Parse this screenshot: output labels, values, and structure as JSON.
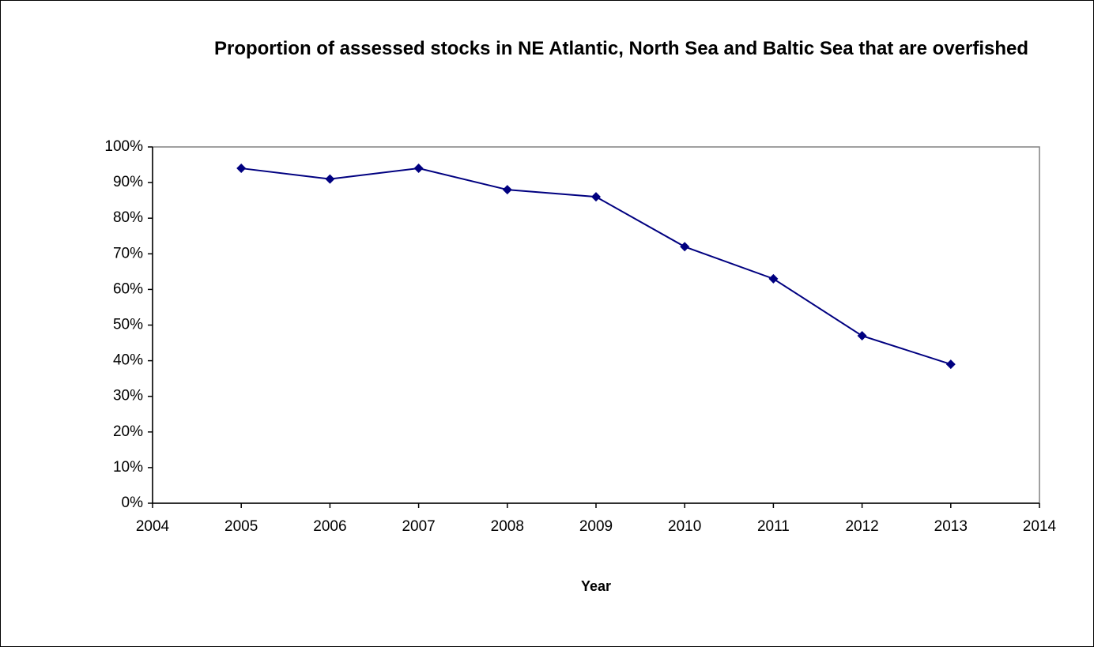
{
  "chart_data": {
    "type": "line",
    "title": "Proportion of assessed stocks in NE Atlantic, North Sea and Baltic Sea that are overfished",
    "x_label": "Year",
    "series": [
      {
        "color": "#000080",
        "x": [
          2005,
          2006,
          2007,
          2008,
          2009,
          2010,
          2011,
          2012,
          2013
        ],
        "values": [
          94,
          91,
          94,
          88,
          86,
          72,
          63,
          47,
          39
        ]
      }
    ],
    "xlim": [
      2004,
      2014
    ],
    "xticks": [
      2004,
      2005,
      2006,
      2007,
      2008,
      2009,
      2010,
      2011,
      2012,
      2013,
      2014
    ],
    "ylim": [
      0,
      100
    ],
    "yticks": [
      {
        "value": 0,
        "label": "0%"
      },
      {
        "value": 10,
        "label": "10%"
      },
      {
        "value": 20,
        "label": "20%"
      },
      {
        "value": 30,
        "label": "30%"
      },
      {
        "value": 40,
        "label": "40%"
      },
      {
        "value": 50,
        "label": "50%"
      },
      {
        "value": 60,
        "label": "60%"
      },
      {
        "value": 70,
        "label": "70%"
      },
      {
        "value": 80,
        "label": "80%"
      },
      {
        "value": 90,
        "label": "90%"
      },
      {
        "value": 100,
        "label": "100%"
      }
    ],
    "grid": false
  }
}
